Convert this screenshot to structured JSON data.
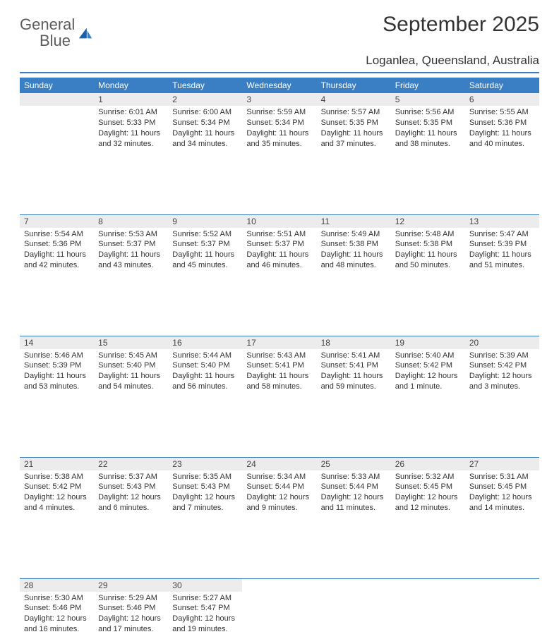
{
  "logo": {
    "text1": "General",
    "text2": "Blue"
  },
  "header": {
    "month_title": "September 2025",
    "location": "Loganlea, Queensland, Australia"
  },
  "calendar": {
    "days_of_week": [
      "Sunday",
      "Monday",
      "Tuesday",
      "Wednesday",
      "Thursday",
      "Friday",
      "Saturday"
    ],
    "header_bg": "#3a7fc4",
    "header_fg": "#ffffff",
    "daynum_bg": "#ececec",
    "divider_color": "#3a7fc4",
    "text_color": "#333333",
    "font_size_cell": 11,
    "weeks": [
      [
        null,
        {
          "n": "1",
          "sunrise": "Sunrise: 6:01 AM",
          "sunset": "Sunset: 5:33 PM",
          "daylight1": "Daylight: 11 hours",
          "daylight2": "and 32 minutes."
        },
        {
          "n": "2",
          "sunrise": "Sunrise: 6:00 AM",
          "sunset": "Sunset: 5:34 PM",
          "daylight1": "Daylight: 11 hours",
          "daylight2": "and 34 minutes."
        },
        {
          "n": "3",
          "sunrise": "Sunrise: 5:59 AM",
          "sunset": "Sunset: 5:34 PM",
          "daylight1": "Daylight: 11 hours",
          "daylight2": "and 35 minutes."
        },
        {
          "n": "4",
          "sunrise": "Sunrise: 5:57 AM",
          "sunset": "Sunset: 5:35 PM",
          "daylight1": "Daylight: 11 hours",
          "daylight2": "and 37 minutes."
        },
        {
          "n": "5",
          "sunrise": "Sunrise: 5:56 AM",
          "sunset": "Sunset: 5:35 PM",
          "daylight1": "Daylight: 11 hours",
          "daylight2": "and 38 minutes."
        },
        {
          "n": "6",
          "sunrise": "Sunrise: 5:55 AM",
          "sunset": "Sunset: 5:36 PM",
          "daylight1": "Daylight: 11 hours",
          "daylight2": "and 40 minutes."
        }
      ],
      [
        {
          "n": "7",
          "sunrise": "Sunrise: 5:54 AM",
          "sunset": "Sunset: 5:36 PM",
          "daylight1": "Daylight: 11 hours",
          "daylight2": "and 42 minutes."
        },
        {
          "n": "8",
          "sunrise": "Sunrise: 5:53 AM",
          "sunset": "Sunset: 5:37 PM",
          "daylight1": "Daylight: 11 hours",
          "daylight2": "and 43 minutes."
        },
        {
          "n": "9",
          "sunrise": "Sunrise: 5:52 AM",
          "sunset": "Sunset: 5:37 PM",
          "daylight1": "Daylight: 11 hours",
          "daylight2": "and 45 minutes."
        },
        {
          "n": "10",
          "sunrise": "Sunrise: 5:51 AM",
          "sunset": "Sunset: 5:37 PM",
          "daylight1": "Daylight: 11 hours",
          "daylight2": "and 46 minutes."
        },
        {
          "n": "11",
          "sunrise": "Sunrise: 5:49 AM",
          "sunset": "Sunset: 5:38 PM",
          "daylight1": "Daylight: 11 hours",
          "daylight2": "and 48 minutes."
        },
        {
          "n": "12",
          "sunrise": "Sunrise: 5:48 AM",
          "sunset": "Sunset: 5:38 PM",
          "daylight1": "Daylight: 11 hours",
          "daylight2": "and 50 minutes."
        },
        {
          "n": "13",
          "sunrise": "Sunrise: 5:47 AM",
          "sunset": "Sunset: 5:39 PM",
          "daylight1": "Daylight: 11 hours",
          "daylight2": "and 51 minutes."
        }
      ],
      [
        {
          "n": "14",
          "sunrise": "Sunrise: 5:46 AM",
          "sunset": "Sunset: 5:39 PM",
          "daylight1": "Daylight: 11 hours",
          "daylight2": "and 53 minutes."
        },
        {
          "n": "15",
          "sunrise": "Sunrise: 5:45 AM",
          "sunset": "Sunset: 5:40 PM",
          "daylight1": "Daylight: 11 hours",
          "daylight2": "and 54 minutes."
        },
        {
          "n": "16",
          "sunrise": "Sunrise: 5:44 AM",
          "sunset": "Sunset: 5:40 PM",
          "daylight1": "Daylight: 11 hours",
          "daylight2": "and 56 minutes."
        },
        {
          "n": "17",
          "sunrise": "Sunrise: 5:43 AM",
          "sunset": "Sunset: 5:41 PM",
          "daylight1": "Daylight: 11 hours",
          "daylight2": "and 58 minutes."
        },
        {
          "n": "18",
          "sunrise": "Sunrise: 5:41 AM",
          "sunset": "Sunset: 5:41 PM",
          "daylight1": "Daylight: 11 hours",
          "daylight2": "and 59 minutes."
        },
        {
          "n": "19",
          "sunrise": "Sunrise: 5:40 AM",
          "sunset": "Sunset: 5:42 PM",
          "daylight1": "Daylight: 12 hours",
          "daylight2": "and 1 minute."
        },
        {
          "n": "20",
          "sunrise": "Sunrise: 5:39 AM",
          "sunset": "Sunset: 5:42 PM",
          "daylight1": "Daylight: 12 hours",
          "daylight2": "and 3 minutes."
        }
      ],
      [
        {
          "n": "21",
          "sunrise": "Sunrise: 5:38 AM",
          "sunset": "Sunset: 5:42 PM",
          "daylight1": "Daylight: 12 hours",
          "daylight2": "and 4 minutes."
        },
        {
          "n": "22",
          "sunrise": "Sunrise: 5:37 AM",
          "sunset": "Sunset: 5:43 PM",
          "daylight1": "Daylight: 12 hours",
          "daylight2": "and 6 minutes."
        },
        {
          "n": "23",
          "sunrise": "Sunrise: 5:35 AM",
          "sunset": "Sunset: 5:43 PM",
          "daylight1": "Daylight: 12 hours",
          "daylight2": "and 7 minutes."
        },
        {
          "n": "24",
          "sunrise": "Sunrise: 5:34 AM",
          "sunset": "Sunset: 5:44 PM",
          "daylight1": "Daylight: 12 hours",
          "daylight2": "and 9 minutes."
        },
        {
          "n": "25",
          "sunrise": "Sunrise: 5:33 AM",
          "sunset": "Sunset: 5:44 PM",
          "daylight1": "Daylight: 12 hours",
          "daylight2": "and 11 minutes."
        },
        {
          "n": "26",
          "sunrise": "Sunrise: 5:32 AM",
          "sunset": "Sunset: 5:45 PM",
          "daylight1": "Daylight: 12 hours",
          "daylight2": "and 12 minutes."
        },
        {
          "n": "27",
          "sunrise": "Sunrise: 5:31 AM",
          "sunset": "Sunset: 5:45 PM",
          "daylight1": "Daylight: 12 hours",
          "daylight2": "and 14 minutes."
        }
      ],
      [
        {
          "n": "28",
          "sunrise": "Sunrise: 5:30 AM",
          "sunset": "Sunset: 5:46 PM",
          "daylight1": "Daylight: 12 hours",
          "daylight2": "and 16 minutes."
        },
        {
          "n": "29",
          "sunrise": "Sunrise: 5:29 AM",
          "sunset": "Sunset: 5:46 PM",
          "daylight1": "Daylight: 12 hours",
          "daylight2": "and 17 minutes."
        },
        {
          "n": "30",
          "sunrise": "Sunrise: 5:27 AM",
          "sunset": "Sunset: 5:47 PM",
          "daylight1": "Daylight: 12 hours",
          "daylight2": "and 19 minutes."
        },
        null,
        null,
        null,
        null
      ]
    ]
  }
}
